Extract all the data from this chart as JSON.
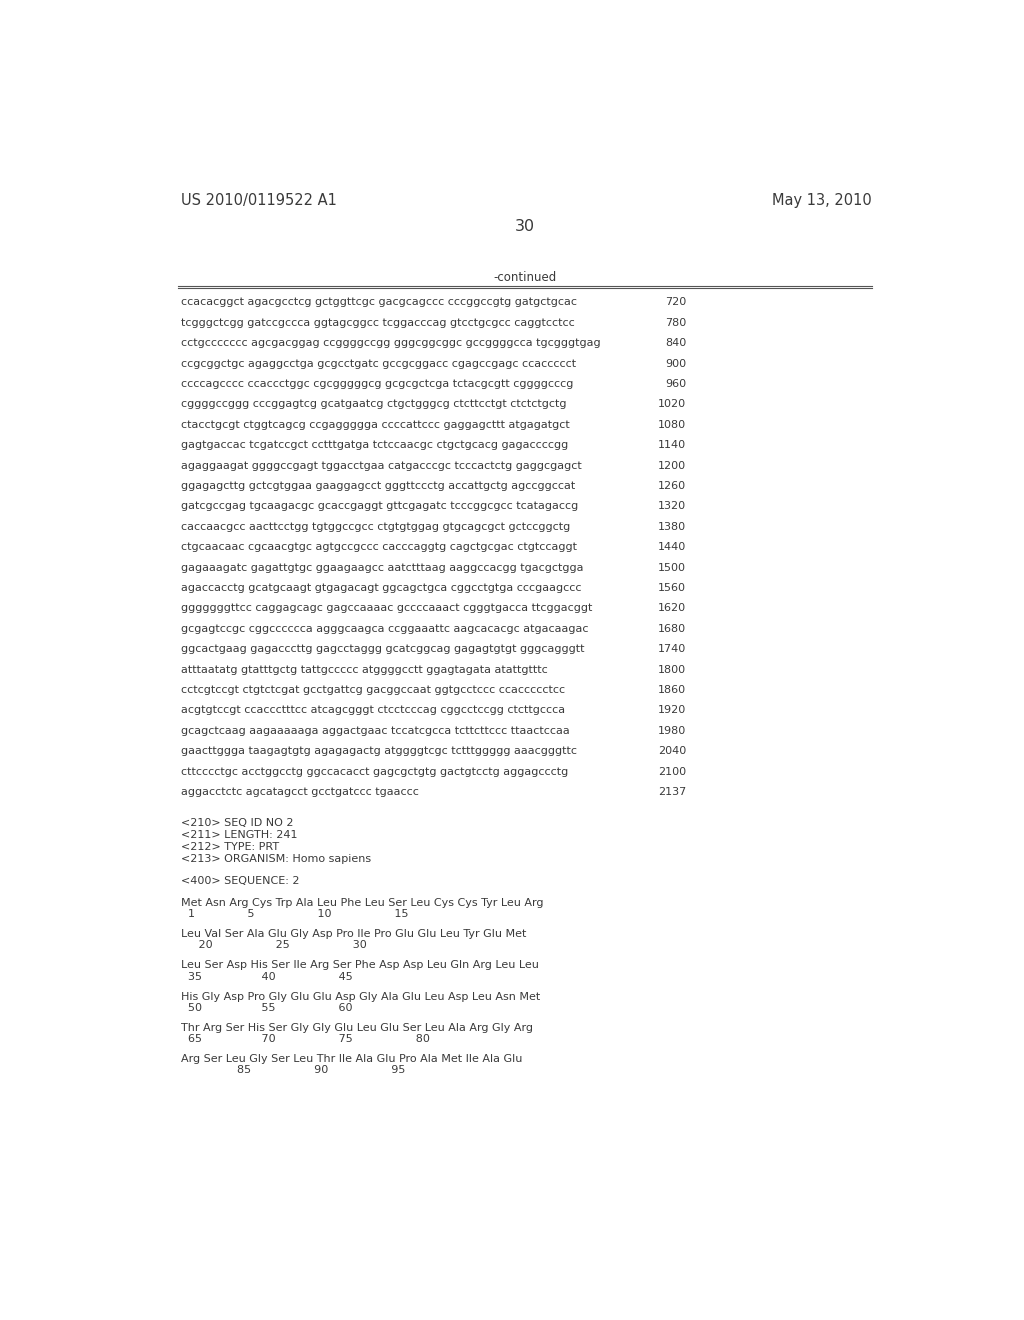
{
  "header_left": "US 2010/0119522 A1",
  "header_right": "May 13, 2010",
  "page_number": "30",
  "continued_label": "-continued",
  "sequence_lines": [
    [
      "ccacacggct agacgcctcg gctggttcgc gacgcagccc cccggccgtg gatgctgcac",
      "720"
    ],
    [
      "tcgggctcgg gatccgccca ggtagcggcc tcggacccag gtcctgcgcc caggtcctcc",
      "780"
    ],
    [
      "cctgccccccc agcgacggag ccggggccgg gggcggcggc gccggggcca tgcgggtgag",
      "840"
    ],
    [
      "ccgcggctgc agaggcctga gcgcctgatc gccgcggacc cgagccgagc ccaccccct",
      "900"
    ],
    [
      "ccccagcccc ccaccctggc cgcgggggcg gcgcgctcga tctacgcgtt cggggcccg",
      "960"
    ],
    [
      "cggggccggg cccggagtcg gcatgaatcg ctgctgggcg ctcttcctgt ctctctgctg",
      "1020"
    ],
    [
      "ctacctgcgt ctggtcagcg ccgaggggga ccccattccc gaggagcttt atgagatgct",
      "1080"
    ],
    [
      "gagtgaccac tcgatccgct cctttgatga tctccaacgc ctgctgcacg gagaccccgg",
      "1140"
    ],
    [
      "agaggaagat ggggccgagt tggacctgaa catgacccgc tcccactctg gaggcgagct",
      "1200"
    ],
    [
      "ggagagcttg gctcgtggaa gaaggagcct gggttccctg accattgctg agccggccat",
      "1260"
    ],
    [
      "gatcgccgag tgcaagacgc gcaccgaggt gttcgagatc tcccggcgcc tcatagaccg",
      "1320"
    ],
    [
      "caccaacgcc aacttcctgg tgtggccgcc ctgtgtggag gtgcagcgct gctccggctg",
      "1380"
    ],
    [
      "ctgcaacaac cgcaacgtgc agtgccgccc cacccaggtg cagctgcgac ctgtccaggt",
      "1440"
    ],
    [
      "gagaaagatc gagattgtgc ggaagaagcc aatctttaag aaggccacgg tgacgctgga",
      "1500"
    ],
    [
      "agaccacctg gcatgcaagt gtgagacagt ggcagctgca cggcctgtga cccgaagccc",
      "1560"
    ],
    [
      "gggggggttcc caggagcagc gagccaaaac gccccaaact cgggtgacca ttcggacggt",
      "1620"
    ],
    [
      "gcgagtccgc cggcccccca agggcaagca ccggaaattc aagcacacgc atgacaagac",
      "1680"
    ],
    [
      "ggcactgaag gagacccttg gagcctaggg gcatcggcag gagagtgtgt gggcagggtt",
      "1740"
    ],
    [
      "atttaatatg gtatttgctg tattgccccc atggggcctt ggagtagata atattgtttc",
      "1800"
    ],
    [
      "cctcgtccgt ctgtctcgat gcctgattcg gacggccaat ggtgcctccc ccaccccctcc",
      "1860"
    ],
    [
      "acgtgtccgt ccaccctttcc atcagcgggt ctcctcccag cggcctccgg ctcttgccca",
      "1920"
    ],
    [
      "gcagctcaag aagaaaaaga aggactgaac tccatcgcca tcttcttccc ttaactccaa",
      "1980"
    ],
    [
      "gaacttggga taagagtgtg agagagactg atggggtcgc tctttggggg aaacgggttc",
      "2040"
    ],
    [
      "cttcccctgc acctggcctg ggccacacct gagcgctgtg gactgtcctg aggagccctg",
      "2100"
    ],
    [
      "aggacctctc agcatagcct gcctgatccc tgaaccc",
      "2137"
    ]
  ],
  "metadata_lines": [
    "<210> SEQ ID NO 2",
    "<211> LENGTH: 241",
    "<212> TYPE: PRT",
    "<213> ORGANISM: Homo sapiens"
  ],
  "sequence_label": "<400> SEQUENCE: 2",
  "protein_blocks": [
    {
      "seq": "Met Asn Arg Cys Trp Ala Leu Phe Leu Ser Leu Cys Cys Tyr Leu Arg",
      "num": "  1               5                  10                  15"
    },
    {
      "seq": "Leu Val Ser Ala Glu Gly Asp Pro Ile Pro Glu Glu Leu Tyr Glu Met",
      "num": "     20                  25                  30"
    },
    {
      "seq": "Leu Ser Asp His Ser Ile Arg Ser Phe Asp Asp Leu Gln Arg Leu Leu",
      "num": "  35                 40                  45"
    },
    {
      "seq": "His Gly Asp Pro Gly Glu Glu Asp Gly Ala Glu Leu Asp Leu Asn Met",
      "num": "  50                 55                  60"
    },
    {
      "seq": "Thr Arg Ser His Ser Gly Gly Glu Leu Glu Ser Leu Ala Arg Gly Arg",
      "num": "  65                 70                  75                  80"
    },
    {
      "seq": "Arg Ser Leu Gly Ser Leu Thr Ile Ala Glu Pro Ala Met Ile Ala Glu",
      "num": "                85                  90                  95"
    }
  ],
  "font_size_mono": 8.0,
  "font_size_header": 10.5,
  "font_size_page": 11.5,
  "background_color": "#ffffff",
  "text_color": "#3a3a3a",
  "line_color": "#555555"
}
